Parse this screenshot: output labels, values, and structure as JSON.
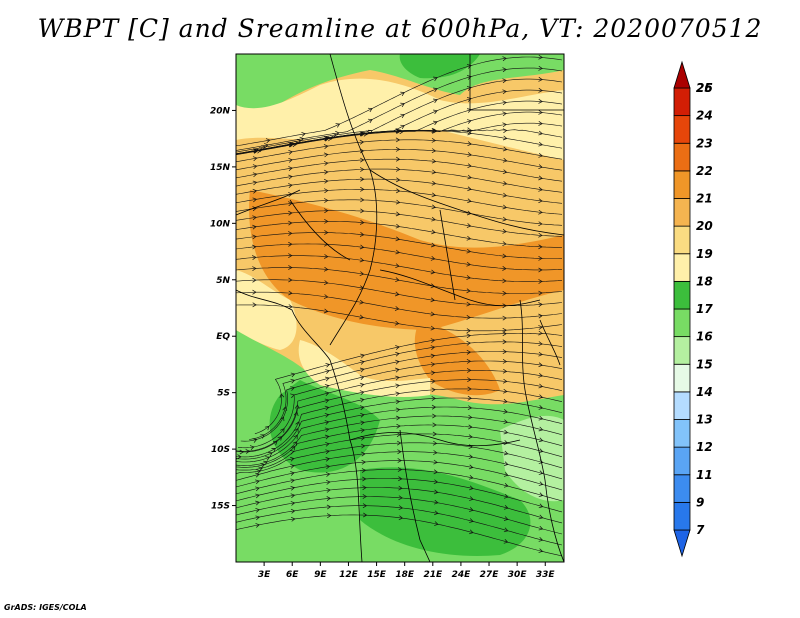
{
  "title": "WBPT [C] and Sreamline at 600hPa, VT: 2020070512",
  "credit": "GrADS: IGES/COLA",
  "map": {
    "lat_labels": [
      "20N",
      "15N",
      "10N",
      "5N",
      "EQ",
      "5S",
      "10S",
      "15S"
    ],
    "lat_values": [
      20,
      15,
      10,
      5,
      0,
      -5,
      -10,
      -15
    ],
    "lon_labels": [
      "3E",
      "6E",
      "9E",
      "12E",
      "15E",
      "18E",
      "21E",
      "24E",
      "27E",
      "30E",
      "33E"
    ],
    "lon_values": [
      3,
      6,
      9,
      12,
      15,
      18,
      21,
      24,
      27,
      30,
      33
    ],
    "lon_range": [
      0,
      35
    ],
    "lat_range": [
      -20,
      25
    ]
  },
  "colorbar": {
    "labels": [
      "7",
      "9",
      "11",
      "12",
      "13",
      "14",
      "15",
      "16",
      "17",
      "18",
      "19",
      "20",
      "21",
      "22",
      "23",
      "24",
      "25",
      "26"
    ],
    "colors": [
      "#1e64e6",
      "#2878eb",
      "#3c8cf0",
      "#5aa5f5",
      "#82c3fa",
      "#b4dcff",
      "#e6fae6",
      "#b4f0a0",
      "#78dc64",
      "#3cbe3c",
      "#fff0aa",
      "#fadc82",
      "#f5b450",
      "#f09628",
      "#eb6e14",
      "#e6460a",
      "#d21e05",
      "#aa0000"
    ]
  }
}
